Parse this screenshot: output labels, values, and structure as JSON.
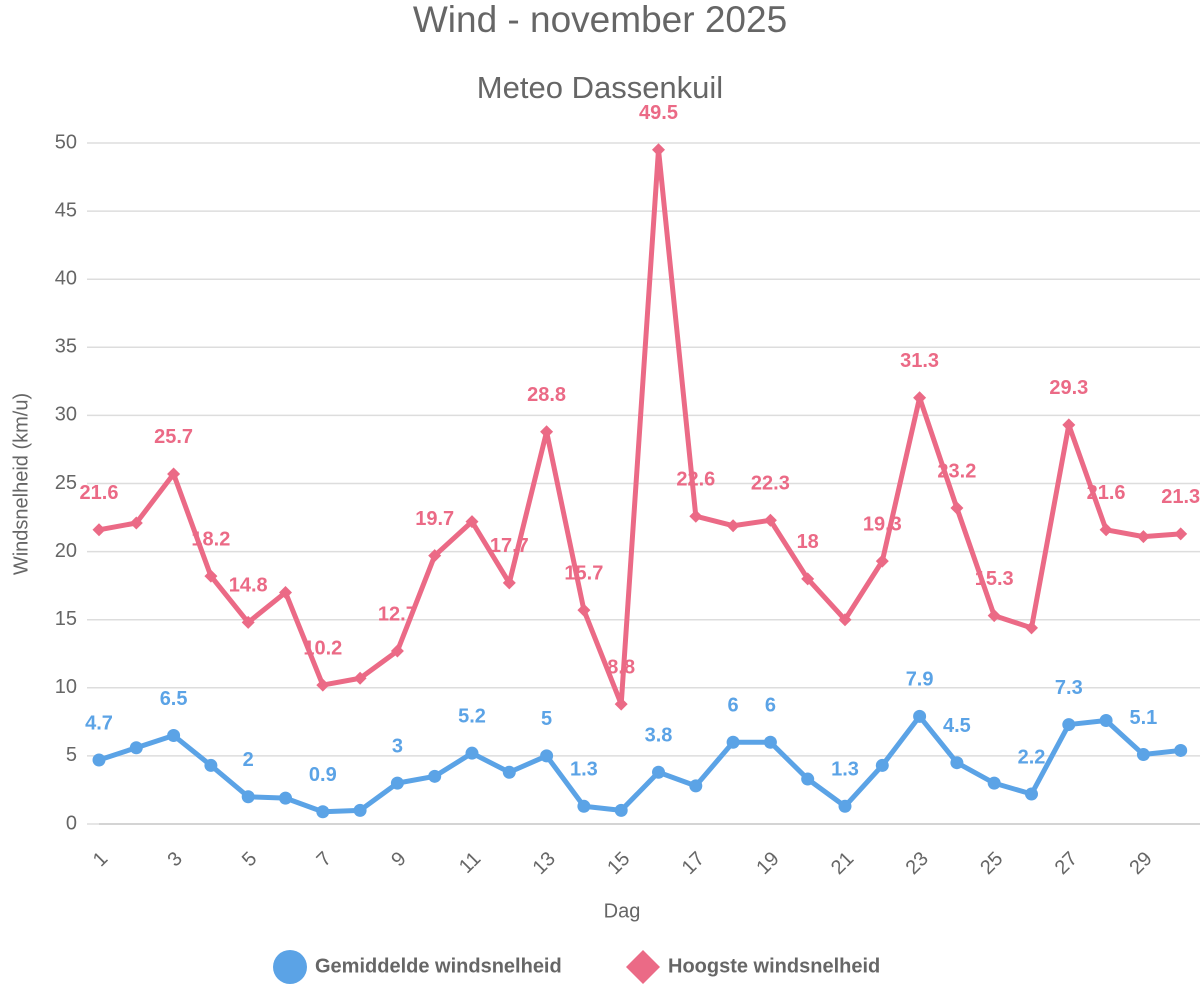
{
  "chart_data": {
    "type": "line",
    "title": "Wind - november 2025",
    "subtitle": "Meteo Dassenkuil",
    "x_label": "Dag",
    "y_label": "Windsnelheid (km/u)",
    "categories": [
      "1",
      null,
      "3",
      null,
      "5",
      null,
      "7",
      null,
      "9",
      null,
      "11",
      null,
      "13",
      null,
      "15",
      null,
      "17",
      null,
      "19",
      null,
      "21",
      null,
      "23",
      null,
      "25",
      null,
      "27",
      null,
      "29",
      null
    ],
    "ylim": [
      0,
      50
    ],
    "yticks": [
      0,
      5,
      10,
      15,
      20,
      25,
      30,
      35,
      40,
      45,
      50
    ],
    "grid": true,
    "legend": "bottom",
    "series": [
      {
        "name": "Gemiddelde windsnelheid",
        "color": "#5ba3e6",
        "marker": "circle",
        "values": [
          4.7,
          5.6,
          6.5,
          4.3,
          2,
          1.9,
          0.9,
          1.0,
          3,
          3.5,
          5.2,
          3.8,
          5,
          1.3,
          1.0,
          3.8,
          2.8,
          6,
          6,
          3.3,
          1.3,
          4.3,
          7.9,
          4.5,
          3.0,
          2.2,
          7.3,
          7.6,
          5.1,
          5.4
        ],
        "value_labels": [
          "4.7",
          null,
          "6.5",
          null,
          "2",
          null,
          "0.9",
          null,
          "3",
          null,
          "5.2",
          null,
          "5",
          "1.3",
          null,
          "3.8",
          null,
          "6",
          "6",
          null,
          "1.3",
          null,
          "7.9",
          "4.5",
          null,
          "2.2",
          "7.3",
          null,
          "5.1",
          null
        ]
      },
      {
        "name": "Hoogste windsnelheid",
        "color": "#eb6a86",
        "marker": "diamond",
        "values": [
          21.6,
          22.1,
          25.7,
          18.2,
          14.8,
          17.0,
          10.2,
          10.7,
          12.7,
          19.7,
          22.2,
          17.7,
          28.8,
          15.7,
          8.8,
          49.5,
          22.6,
          21.9,
          22.3,
          18,
          15.0,
          19.3,
          31.3,
          23.2,
          15.3,
          14.4,
          29.3,
          21.6,
          21.1,
          21.3
        ],
        "value_labels": [
          "21.6",
          null,
          "25.7",
          "18.2",
          "14.8",
          null,
          "10.2",
          null,
          "12.7",
          "19.7",
          null,
          "17.7",
          "28.8",
          "15.7",
          "8.8",
          "49.5",
          "22.6",
          null,
          "22.3",
          "18",
          null,
          "19.3",
          "31.3",
          "23.2",
          "15.3",
          null,
          "29.3",
          "21.6",
          null,
          "21.3"
        ]
      }
    ]
  }
}
